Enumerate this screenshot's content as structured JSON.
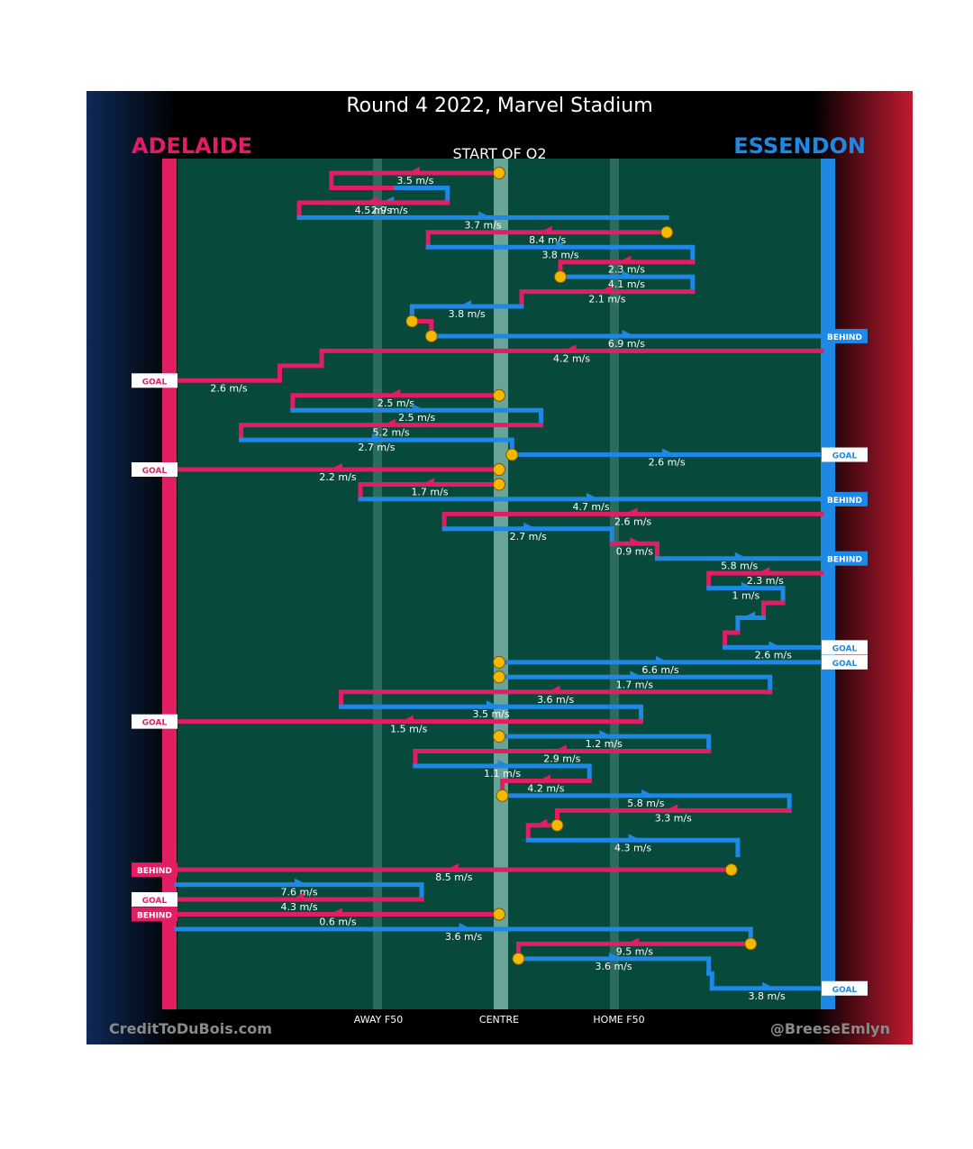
{
  "header": {
    "title": "Round 4 2022, Marvel Stadium",
    "team_left": "ADELAIDE",
    "team_right": "ESSENDON",
    "start_label": "START OF Q2"
  },
  "footer": {
    "credit_left": "CreditToDuBois.com",
    "credit_right": "@BreeseEmlyn"
  },
  "colors": {
    "adelaide": "#e11d63",
    "essendon": "#1e88e5",
    "field": "#07493b",
    "bounce_marker": "#f5b800"
  },
  "chart_data": {
    "type": "line",
    "title": "Round 4 2022, Marvel Stadium",
    "x_axis_labels": [
      "AWAY F50",
      "CENTRE",
      "HOME F50"
    ],
    "xlim": [
      -100,
      100
    ],
    "x_units": "percent of ground from centre (negative = Adelaide goal end)",
    "sequences": [
      {
        "team": "Adelaide",
        "speed": "3.5 m/s",
        "path": [
          [
            0,
            0
          ],
          [
            0,
            -52
          ],
          [
            1,
            -52
          ],
          [
            1,
            -32
          ]
        ],
        "start_marker": true
      },
      {
        "team": "Essendon",
        "speed": "2.9 m/s",
        "path": [
          [
            1,
            -32
          ],
          [
            1,
            -16
          ],
          [
            2,
            -16
          ],
          [
            2,
            -52
          ]
        ]
      },
      {
        "team": "Adelaide",
        "speed": "4.5 m/s",
        "path": [
          [
            2,
            -16
          ],
          [
            2,
            -62
          ],
          [
            3,
            -62
          ]
        ]
      },
      {
        "team": "Essendon",
        "speed": "3.7 m/s",
        "path": [
          [
            3,
            -62
          ],
          [
            3,
            52
          ]
        ]
      },
      {
        "team": "Adelaide",
        "speed": "8.4 m/s",
        "path": [
          [
            4,
            52
          ],
          [
            4,
            -22
          ],
          [
            5,
            -22
          ]
        ],
        "start_marker": true
      },
      {
        "team": "Essendon",
        "speed": "3.8 m/s",
        "path": [
          [
            5,
            -22
          ],
          [
            5,
            60
          ],
          [
            6,
            60
          ]
        ]
      },
      {
        "team": "Adelaide",
        "speed": "2.3 m/s",
        "path": [
          [
            6,
            60
          ],
          [
            6,
            19
          ],
          [
            7,
            19
          ]
        ]
      },
      {
        "team": "Essendon",
        "speed": "4.1 m/s",
        "path": [
          [
            7,
            19
          ],
          [
            7,
            60
          ],
          [
            8,
            60
          ]
        ],
        "start_marker": true
      },
      {
        "team": "Adelaide",
        "speed": "2.1 m/s",
        "path": [
          [
            8,
            60
          ],
          [
            8,
            7
          ],
          [
            9,
            7
          ]
        ]
      },
      {
        "team": "Essendon",
        "speed": "3.8 m/s",
        "path": [
          [
            9,
            7
          ],
          [
            9,
            -27
          ],
          [
            10,
            -27
          ]
        ]
      },
      {
        "team": "Adelaide",
        "speed": "",
        "path": [
          [
            10,
            -27
          ],
          [
            10,
            -21
          ],
          [
            11,
            -21
          ]
        ],
        "start_marker": true
      },
      {
        "team": "Essendon",
        "speed": "6.9 m/s",
        "path": [
          [
            11,
            -21
          ],
          [
            11,
            100
          ]
        ],
        "start_marker": true,
        "end": "BEHIND"
      },
      {
        "team": "Adelaide",
        "speed": "4.2 m/s",
        "path": [
          [
            12,
            100
          ],
          [
            12,
            -55
          ],
          [
            13,
            -55
          ],
          [
            13,
            -68
          ],
          [
            14,
            -68
          ],
          [
            14,
            -100
          ]
        ],
        "end": "GOAL",
        "end_speed": "2.6 m/s"
      },
      {
        "team": "Adelaide",
        "speed": "2.5 m/s",
        "path": [
          [
            15,
            0
          ],
          [
            15,
            -64
          ],
          [
            16,
            -64
          ]
        ],
        "start_marker": true
      },
      {
        "team": "Essendon",
        "speed": "2.5 m/s",
        "path": [
          [
            16,
            -64
          ],
          [
            16,
            13
          ],
          [
            17,
            13
          ]
        ]
      },
      {
        "team": "Adelaide",
        "speed": "5.2 m/s",
        "path": [
          [
            17,
            13
          ],
          [
            17,
            -80
          ],
          [
            18,
            -80
          ]
        ]
      },
      {
        "team": "Essendon",
        "speed": "2.7 m/s",
        "path": [
          [
            18,
            -80
          ],
          [
            18,
            4
          ],
          [
            19,
            4
          ]
        ]
      },
      {
        "team": "Essendon",
        "speed": "2.6 m/s",
        "path": [
          [
            19,
            4
          ],
          [
            19,
            100
          ]
        ],
        "start_marker": true,
        "end": "GOAL"
      },
      {
        "team": "Adelaide",
        "speed": "2.2 m/s",
        "path": [
          [
            20,
            0
          ],
          [
            20,
            -100
          ]
        ],
        "start_marker": true,
        "end": "GOAL"
      },
      {
        "team": "Adelaide",
        "speed": "1.7 m/s",
        "path": [
          [
            21,
            0
          ],
          [
            21,
            -43
          ],
          [
            22,
            -43
          ]
        ],
        "start_marker": true
      },
      {
        "team": "Essendon",
        "speed": "4.7 m/s",
        "path": [
          [
            22,
            -43
          ],
          [
            22,
            100
          ]
        ],
        "end": "BEHIND"
      },
      {
        "team": "Adelaide",
        "speed": "2.6 m/s",
        "path": [
          [
            23,
            100
          ],
          [
            23,
            -17
          ],
          [
            24,
            -17
          ]
        ]
      },
      {
        "team": "Essendon",
        "speed": "2.7 m/s",
        "path": [
          [
            24,
            -17
          ],
          [
            24,
            35
          ],
          [
            25,
            35
          ]
        ]
      },
      {
        "team": "Adelaide",
        "speed": "0.9 m/s",
        "path": [
          [
            25,
            35
          ],
          [
            25,
            49
          ],
          [
            26,
            49
          ]
        ]
      },
      {
        "team": "Essendon",
        "speed": "5.8 m/s",
        "path": [
          [
            26,
            49
          ],
          [
            26,
            100
          ]
        ],
        "end": "BEHIND"
      },
      {
        "team": "Adelaide",
        "speed": "2.3 m/s",
        "path": [
          [
            27,
            100
          ],
          [
            27,
            65
          ],
          [
            28,
            65
          ]
        ]
      },
      {
        "team": "Essendon",
        "speed": "1 m/s",
        "path": [
          [
            28,
            65
          ],
          [
            28,
            88
          ],
          [
            29,
            88
          ]
        ]
      },
      {
        "team": "Adelaide",
        "speed": "",
        "path": [
          [
            29,
            88
          ],
          [
            29,
            82
          ],
          [
            30,
            82
          ]
        ]
      },
      {
        "team": "Essendon",
        "speed": "",
        "path": [
          [
            30,
            82
          ],
          [
            30,
            74
          ],
          [
            31,
            74
          ]
        ]
      },
      {
        "team": "Adelaide",
        "speed": "",
        "path": [
          [
            31,
            74
          ],
          [
            31,
            70
          ],
          [
            32,
            70
          ]
        ]
      },
      {
        "team": "Essendon",
        "speed": "2.6 m/s",
        "path": [
          [
            32,
            70
          ],
          [
            32,
            100
          ]
        ],
        "end": "GOAL"
      },
      {
        "team": "Essendon",
        "speed": "6.6 m/s",
        "path": [
          [
            33,
            0
          ],
          [
            33,
            100
          ]
        ],
        "start_marker": true,
        "end": "GOAL"
      },
      {
        "team": "Essendon",
        "speed": "1.7 m/s",
        "path": [
          [
            34,
            0
          ],
          [
            34,
            84
          ],
          [
            35,
            84
          ]
        ],
        "start_marker": true
      },
      {
        "team": "Adelaide",
        "speed": "3.6 m/s",
        "path": [
          [
            35,
            84
          ],
          [
            35,
            -49
          ],
          [
            36,
            -49
          ]
        ]
      },
      {
        "team": "Essendon",
        "speed": "3.5 m/s",
        "path": [
          [
            36,
            -49
          ],
          [
            36,
            44
          ],
          [
            37,
            44
          ]
        ]
      },
      {
        "team": "Adelaide",
        "speed": "1.5 m/s",
        "path": [
          [
            37,
            44
          ],
          [
            37,
            -100
          ]
        ],
        "end": "GOAL"
      },
      {
        "team": "Essendon",
        "speed": "1.2 m/s",
        "path": [
          [
            38,
            0
          ],
          [
            38,
            65
          ],
          [
            39,
            65
          ]
        ],
        "start_marker": true
      },
      {
        "team": "Adelaide",
        "speed": "2.9 m/s",
        "path": [
          [
            39,
            65
          ],
          [
            39,
            -26
          ],
          [
            40,
            -26
          ]
        ]
      },
      {
        "team": "Essendon",
        "speed": "1.1 m/s",
        "path": [
          [
            40,
            -26
          ],
          [
            40,
            28
          ],
          [
            41,
            28
          ]
        ]
      },
      {
        "team": "Adelaide",
        "speed": "4.2 m/s",
        "path": [
          [
            41,
            28
          ],
          [
            41,
            1
          ],
          [
            42,
            1
          ]
        ]
      },
      {
        "team": "Essendon",
        "speed": "5.8 m/s",
        "path": [
          [
            42,
            1
          ],
          [
            42,
            90
          ],
          [
            43,
            90
          ]
        ],
        "start_marker": true
      },
      {
        "team": "Adelaide",
        "speed": "3.3 m/s",
        "path": [
          [
            43,
            90
          ],
          [
            43,
            18
          ],
          [
            44,
            18
          ]
        ]
      },
      {
        "team": "Adelaide",
        "speed": "",
        "path": [
          [
            44,
            18
          ],
          [
            44,
            9
          ],
          [
            45,
            9
          ]
        ],
        "start_marker": true
      },
      {
        "team": "Essendon",
        "speed": "4.3 m/s",
        "path": [
          [
            45,
            9
          ],
          [
            45,
            74
          ],
          [
            46,
            74
          ]
        ]
      },
      {
        "team": "Adelaide",
        "speed": "8.5 m/s",
        "path": [
          [
            47,
            72
          ],
          [
            47,
            -100
          ]
        ],
        "start_marker": true,
        "end": "BEHIND"
      },
      {
        "team": "Essendon",
        "speed": "7.6 m/s",
        "path": [
          [
            48,
            -100
          ],
          [
            48,
            -24
          ],
          [
            49,
            -24
          ]
        ]
      },
      {
        "team": "Adelaide",
        "speed": "4.3 m/s",
        "path": [
          [
            49,
            -24
          ],
          [
            49,
            -100
          ]
        ],
        "end": "GOAL"
      },
      {
        "team": "Adelaide",
        "speed": "0.6 m/s",
        "path": [
          [
            50,
            0
          ],
          [
            50,
            -100
          ]
        ],
        "start_marker": true,
        "end": "BEHIND"
      },
      {
        "team": "Essendon",
        "speed": "3.6 m/s",
        "path": [
          [
            51,
            -100
          ],
          [
            51,
            78
          ],
          [
            52,
            78
          ]
        ]
      },
      {
        "team": "Adelaide",
        "speed": "9.5 m/s",
        "path": [
          [
            52,
            78
          ],
          [
            52,
            6
          ],
          [
            53,
            6
          ]
        ],
        "start_marker": true
      },
      {
        "team": "Essendon",
        "speed": "3.6 m/s",
        "path": [
          [
            53,
            6
          ],
          [
            53,
            65
          ],
          [
            54,
            65
          ]
        ],
        "start_marker": true
      },
      {
        "team": "Essendon",
        "speed": "",
        "path": [
          [
            54,
            65
          ],
          [
            54,
            66
          ],
          [
            55,
            66
          ]
        ]
      },
      {
        "team": "Essendon",
        "speed": "3.8 m/s",
        "path": [
          [
            55,
            66
          ],
          [
            55,
            100
          ]
        ],
        "end": "GOAL"
      }
    ]
  }
}
